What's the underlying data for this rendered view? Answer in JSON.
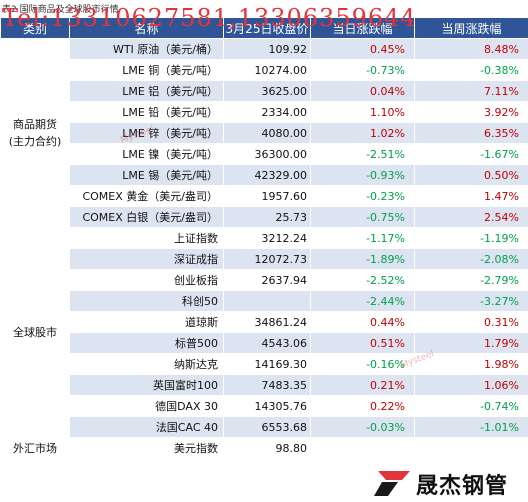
{
  "caption": "表2 国际商品及全球股市行情",
  "overlay_text": "Tel:13310627581,13306359644",
  "headers": [
    "类别",
    "名称",
    "3月25日收盘价",
    "当日涨跌幅",
    "当周涨跌幅"
  ],
  "groups": [
    {
      "category": "商品期货\n(主力合约)",
      "rows": [
        {
          "name": "WTI 原油（美元/桶）",
          "price": "109.92",
          "day": "0.45%",
          "week": "8.48%"
        },
        {
          "name": "LME 铜（美元/吨）",
          "price": "10274.00",
          "day": "-0.73%",
          "week": "-0.38%"
        },
        {
          "name": "LME 铝（美元/吨）",
          "price": "3625.00",
          "day": "0.04%",
          "week": "7.11%"
        },
        {
          "name": "LME 铅（美元/吨）",
          "price": "2334.00",
          "day": "1.10%",
          "week": "3.92%"
        },
        {
          "name": "LME 锌（美元/吨）",
          "price": "4080.00",
          "day": "1.02%",
          "week": "6.35%"
        },
        {
          "name": "LME 镍（美元/吨）",
          "price": "36300.00",
          "day": "-2.51%",
          "week": "-1.67%"
        },
        {
          "name": "LME 锡（美元/吨）",
          "price": "42329.00",
          "day": "-0.93%",
          "week": "0.50%"
        },
        {
          "name": "COMEX 黄金（美元/盎司）",
          "price": "1957.60",
          "day": "-0.23%",
          "week": "1.47%"
        },
        {
          "name": "COMEX 白银（美元/盎司）",
          "price": "25.73",
          "day": "-0.75%",
          "week": "2.54%"
        }
      ]
    },
    {
      "category": "全球股市",
      "rows": [
        {
          "name": "上证指数",
          "price": "3212.24",
          "day": "-1.17%",
          "week": "-1.19%"
        },
        {
          "name": "深证成指",
          "price": "12072.73",
          "day": "-1.89%",
          "week": "-2.08%"
        },
        {
          "name": "创业板指",
          "price": "2637.94",
          "day": "-2.52%",
          "week": "-2.79%"
        },
        {
          "name": "科创50",
          "price": "",
          "day": "-2.44%",
          "week": "-3.27%"
        },
        {
          "name": "道琼斯",
          "price": "34861.24",
          "day": "0.44%",
          "week": "0.31%"
        },
        {
          "name": "标普500",
          "price": "4543.06",
          "day": "0.51%",
          "week": "1.79%"
        },
        {
          "name": "纳斯达克",
          "price": "14169.30",
          "day": "-0.16%",
          "week": "1.98%"
        },
        {
          "name": "英国富时100",
          "price": "7483.35",
          "day": "0.21%",
          "week": "1.06%"
        },
        {
          "name": "德国DAX 30",
          "price": "14305.76",
          "day": "0.22%",
          "week": "-0.74%"
        },
        {
          "name": "法国CAC 40",
          "price": "6553.68",
          "day": "-0.03%",
          "week": "-1.01%"
        }
      ]
    },
    {
      "category": "外汇市场",
      "rows": [
        {
          "name": "美元指数",
          "price": "98.80",
          "day": "",
          "week": ""
        }
      ]
    }
  ],
  "watermark_text": "Mysteel",
  "logo": {
    "text": "晟杰钢管",
    "mark_color": "#e2343c"
  },
  "colors": {
    "header_bg": "#2f5597",
    "row_band": "#dde4f1",
    "positive": "#c00000",
    "negative": "#00a04a"
  }
}
